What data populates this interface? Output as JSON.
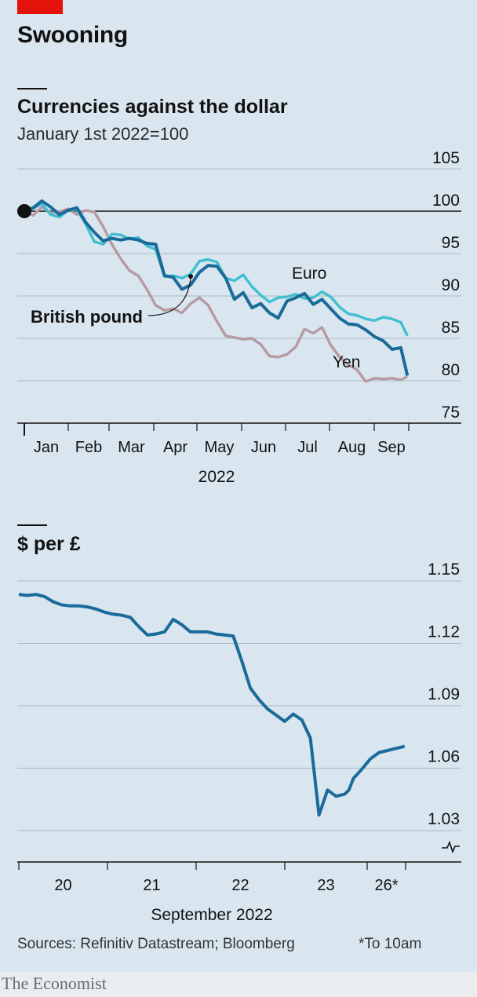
{
  "header": {
    "title": "Swooning"
  },
  "footer": {
    "sources": "Sources: Refinitiv Datastream; Bloomberg",
    "footnote": "*To 10am",
    "brand": "The Economist"
  },
  "colors": {
    "pound": "#1a6b9a",
    "euro": "#3fbfd0",
    "yen": "#b79aa1",
    "background": "#d9e6ef",
    "brand_red": "#e3120b"
  },
  "chart_data": [
    {
      "type": "line",
      "title": "Currencies against the dollar",
      "subtitle": "January 1st 2022=100",
      "xlabel": "2022",
      "x_tick_labels": [
        "Jan",
        "Feb",
        "Mar",
        "Apr",
        "May",
        "Jun",
        "Jul",
        "Aug",
        "Sep"
      ],
      "y_ticks": [
        75,
        80,
        85,
        90,
        95,
        100,
        105
      ],
      "ylim": [
        75,
        105
      ],
      "reference_line": 100,
      "x_unit": "month (1 = start of Jan, 9.75 ≈ Sep 26th)",
      "series": [
        {
          "name": "British pound",
          "x": [
            1,
            1.2,
            1.4,
            1.6,
            1.8,
            2.0,
            2.2,
            2.4,
            2.6,
            2.8,
            3.0,
            3.2,
            3.4,
            3.6,
            3.8,
            4.0,
            4.2,
            4.4,
            4.6,
            4.8,
            5.0,
            5.2,
            5.4,
            5.6,
            5.8,
            6.0,
            6.2,
            6.4,
            6.6,
            6.8,
            7.0,
            7.2,
            7.4,
            7.6,
            7.8,
            8.0,
            8.2,
            8.4,
            8.6,
            8.8,
            9.0,
            9.2,
            9.4,
            9.6,
            9.75
          ],
          "values": [
            100,
            100.4,
            101.2,
            100.5,
            99.6,
            100.1,
            100.4,
            98.7,
            97.5,
            96.5,
            96.8,
            96.6,
            96.8,
            96.6,
            96.2,
            96.1,
            92.4,
            92.2,
            90.8,
            91.3,
            92.8,
            93.6,
            93.5,
            92.1,
            89.6,
            90.4,
            88.6,
            89.1,
            88.0,
            87.4,
            89.4,
            89.8,
            90.3,
            89.0,
            89.6,
            88.5,
            87.4,
            86.7,
            86.6,
            86.0,
            85.2,
            84.7,
            83.7,
            83.9,
            80.6
          ]
        },
        {
          "name": "Euro",
          "x": [
            1,
            1.2,
            1.4,
            1.6,
            1.8,
            2.0,
            2.2,
            2.4,
            2.6,
            2.8,
            3.0,
            3.2,
            3.4,
            3.6,
            3.8,
            4.0,
            4.2,
            4.4,
            4.6,
            4.8,
            5.0,
            5.2,
            5.4,
            5.6,
            5.8,
            6.0,
            6.2,
            6.4,
            6.6,
            6.8,
            7.0,
            7.2,
            7.4,
            7.6,
            7.8,
            8.0,
            8.2,
            8.4,
            8.6,
            8.8,
            9.0,
            9.2,
            9.4,
            9.6,
            9.75
          ],
          "values": [
            100,
            100.3,
            100.9,
            99.6,
            99.3,
            100.1,
            100.2,
            98.5,
            96.4,
            96.1,
            97.3,
            97.2,
            96.7,
            96.9,
            95.9,
            95.5,
            92.3,
            92.4,
            92.1,
            92.6,
            94.1,
            94.3,
            94.0,
            92.1,
            91.8,
            92.5,
            91.1,
            90.1,
            89.3,
            89.8,
            89.9,
            90.2,
            89.7,
            89.8,
            90.5,
            89.9,
            88.7,
            87.9,
            87.7,
            87.3,
            87.1,
            87.5,
            87.3,
            86.9,
            85.3
          ]
        },
        {
          "name": "Yen",
          "x": [
            1,
            1.2,
            1.4,
            1.6,
            1.8,
            2.0,
            2.2,
            2.4,
            2.6,
            2.8,
            3.0,
            3.2,
            3.4,
            3.6,
            3.8,
            4.0,
            4.2,
            4.4,
            4.6,
            4.8,
            5.0,
            5.2,
            5.4,
            5.6,
            5.8,
            6.0,
            6.2,
            6.4,
            6.6,
            6.8,
            7.0,
            7.2,
            7.4,
            7.6,
            7.8,
            8.0,
            8.2,
            8.4,
            8.6,
            8.8,
            9.0,
            9.2,
            9.4,
            9.6,
            9.75
          ],
          "values": [
            100,
            99.5,
            100.5,
            99.8,
            99.9,
            100.3,
            99.6,
            100.1,
            99.9,
            98.2,
            96.1,
            94.4,
            93.0,
            92.4,
            90.8,
            88.9,
            88.3,
            88.5,
            88.0,
            89.1,
            89.8,
            88.9,
            87.0,
            85.3,
            85.1,
            84.9,
            85.0,
            84.3,
            82.9,
            82.8,
            83.1,
            84.0,
            86.1,
            85.6,
            86.3,
            84.2,
            82.8,
            81.9,
            81.3,
            79.9,
            80.3,
            80.2,
            80.3,
            80.1,
            80.5
          ]
        }
      ],
      "annotations": [
        "British pound",
        "Euro",
        "Yen"
      ]
    },
    {
      "type": "line",
      "title": "$ per £",
      "xlabel": "September 2022",
      "x_tick_labels": [
        "20",
        "21",
        "22",
        "23",
        "26*"
      ],
      "y_ticks": [
        1.03,
        1.06,
        1.09,
        1.12,
        1.15
      ],
      "ylim": [
        1.03,
        1.15
      ],
      "axis_break": true,
      "x_unit": "trading day (0 = Sep 20th, 4.5 ≈ Sep 26th 10am)",
      "series": [
        {
          "name": "$ per £",
          "x": [
            0,
            0.1,
            0.2,
            0.3,
            0.4,
            0.5,
            0.6,
            0.7,
            0.8,
            0.9,
            1.0,
            1.1,
            1.2,
            1.3,
            1.4,
            1.5,
            1.6,
            1.7,
            1.8,
            1.9,
            2.0,
            2.1,
            2.2,
            2.3,
            2.4,
            2.5,
            2.6,
            2.7,
            2.8,
            2.9,
            3.0,
            3.1,
            3.2,
            3.3,
            3.4,
            3.5,
            3.6,
            3.7,
            3.8,
            3.85,
            3.9,
            4.0,
            4.1,
            4.2,
            4.3,
            4.4,
            4.5
          ],
          "values": [
            1.1435,
            1.143,
            1.1435,
            1.1425,
            1.14,
            1.1385,
            1.138,
            1.138,
            1.1375,
            1.1365,
            1.135,
            1.134,
            1.1335,
            1.1325,
            1.128,
            1.124,
            1.1245,
            1.1255,
            1.1315,
            1.129,
            1.1255,
            1.1255,
            1.1255,
            1.1245,
            1.124,
            1.1235,
            1.1115,
            1.0985,
            1.093,
            1.0885,
            1.0855,
            1.0825,
            1.086,
            1.0832,
            1.0745,
            1.0375,
            1.0495,
            1.0465,
            1.0475,
            1.0495,
            1.055,
            1.0595,
            1.0645,
            1.0675,
            1.0685,
            1.0695,
            1.0705
          ]
        }
      ]
    }
  ]
}
